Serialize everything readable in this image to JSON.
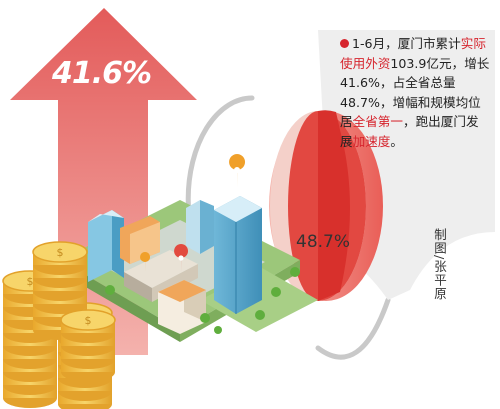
{
  "arrow_label": "41.6%",
  "pie": {
    "share_percent": 48.7,
    "label": "48.7%"
  },
  "description": {
    "segments": [
      {
        "text": "1-6月，厦门市累计",
        "highlight": false
      },
      {
        "text": "实际使用外资",
        "highlight": true
      },
      {
        "text": "103.9亿元，增长41.6%，占全省总量48.7%，增幅和规模均位居",
        "highlight": false
      },
      {
        "text": "全省第一",
        "highlight": true
      },
      {
        "text": "，跑出厦门发展",
        "highlight": false
      },
      {
        "text": "加速度",
        "highlight": true
      },
      {
        "text": "。",
        "highlight": false
      }
    ]
  },
  "credit": "制图/张平原",
  "colors": {
    "accent_red": "#d6252e",
    "arrow": "#e9736e",
    "pie_light": "#f08a80",
    "gold": "#f2c14b"
  }
}
